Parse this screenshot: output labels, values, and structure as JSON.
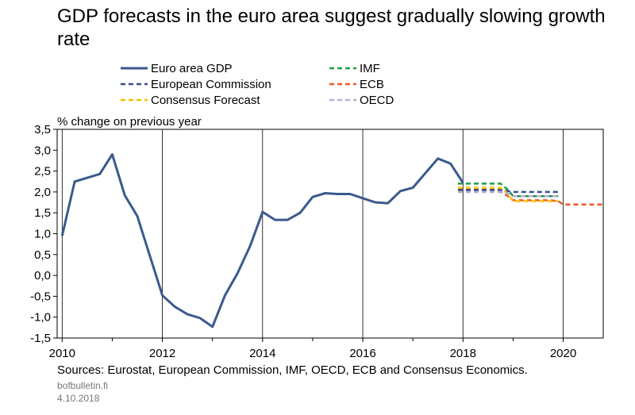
{
  "title": "GDP forecasts in the euro area suggest gradually slowing growth rate",
  "sources": "Sources: Eurostat, European Commission, IMF, OECD, ECB and Consensus Economics.",
  "site": "bofbulletin.fi",
  "date": "4.10.2018",
  "chart_data": {
    "type": "line",
    "ylabel": "% change on previous year",
    "xlim": [
      2009.9,
      2020.8
    ],
    "ylim": [
      -1.5,
      3.5
    ],
    "y_ticks": [
      -1.5,
      -1.0,
      -0.5,
      0.0,
      0.5,
      1.0,
      1.5,
      2.0,
      2.5,
      3.0,
      3.5
    ],
    "y_tick_labels": [
      "-1,5",
      "-1,0",
      "-0,5",
      "0,0",
      "0,5",
      "1,0",
      "1,5",
      "2,0",
      "2,5",
      "3,0",
      "3,5"
    ],
    "x_ticks": [
      2010,
      2012,
      2014,
      2016,
      2018,
      2020
    ],
    "x_tick_labels": [
      "2010",
      "2012",
      "2014",
      "2016",
      "2018",
      "2020"
    ],
    "grid": "vertical",
    "legend_position": "top",
    "series": [
      {
        "name": "Euro area GDP",
        "color": "#3a5a8c",
        "style": "solid",
        "x": [
          2010.0,
          2010.25,
          2010.75,
          2011.0,
          2011.25,
          2011.5,
          2011.75,
          2012.0,
          2012.25,
          2012.5,
          2012.75,
          2013.0,
          2013.25,
          2013.5,
          2013.75,
          2014.0,
          2014.25,
          2014.5,
          2014.75,
          2015.0,
          2015.25,
          2015.5,
          2015.75,
          2016.0,
          2016.25,
          2016.5,
          2016.75,
          2017.0,
          2017.25,
          2017.5,
          2017.75,
          2018.0
        ],
        "y": [
          0.95,
          2.25,
          2.43,
          2.9,
          1.92,
          1.42,
          0.47,
          -0.48,
          -0.75,
          -0.93,
          -1.02,
          -1.23,
          -0.48,
          0.05,
          0.7,
          1.52,
          1.33,
          1.33,
          1.5,
          1.88,
          1.97,
          1.95,
          1.95,
          1.85,
          1.75,
          1.73,
          2.02,
          2.1,
          2.45,
          2.8,
          2.68,
          2.22
        ]
      },
      {
        "name": "IMF",
        "color": "#1a9e47",
        "style": "dashed",
        "x": [
          2017.9,
          2018.0,
          2018.25,
          2018.5,
          2018.75,
          2018.9,
          2019.0,
          2019.25,
          2019.5,
          2019.75,
          2019.9
        ],
        "y": [
          2.2,
          2.2,
          2.2,
          2.2,
          2.2,
          2.05,
          1.9,
          1.9,
          1.9,
          1.9,
          1.9
        ]
      },
      {
        "name": "European Commission",
        "color": "#3a4c8e",
        "style": "dashed",
        "x": [
          2017.9,
          2018.0,
          2018.25,
          2018.5,
          2018.75,
          2018.9,
          2019.0,
          2019.25,
          2019.5,
          2019.75,
          2019.9
        ],
        "y": [
          2.05,
          2.05,
          2.05,
          2.05,
          2.05,
          2.02,
          2.0,
          2.0,
          2.0,
          2.0,
          2.0
        ]
      },
      {
        "name": "ECB",
        "color": "#f05a28",
        "style": "dashed",
        "x": [
          2017.9,
          2018.0,
          2018.25,
          2018.5,
          2018.75,
          2018.9,
          2019.0,
          2019.25,
          2019.5,
          2019.75,
          2019.9,
          2020.0,
          2020.25,
          2020.5,
          2020.8
        ],
        "y": [
          2.0,
          2.0,
          2.0,
          2.0,
          2.0,
          1.9,
          1.8,
          1.8,
          1.8,
          1.8,
          1.78,
          1.7,
          1.7,
          1.7,
          1.7
        ]
      },
      {
        "name": "Consensus Forecast",
        "color": "#f8c300",
        "style": "dashed",
        "x": [
          2017.9,
          2018.0,
          2018.25,
          2018.5,
          2018.75,
          2018.9,
          2019.0,
          2019.25,
          2019.5,
          2019.75,
          2019.9
        ],
        "y": [
          2.1,
          2.1,
          2.1,
          2.1,
          2.1,
          1.95,
          1.78,
          1.78,
          1.78,
          1.78,
          1.78
        ]
      },
      {
        "name": "OECD",
        "color": "#b7aed0",
        "style": "dashed",
        "x": [
          2017.9,
          2018.0,
          2018.25,
          2018.5,
          2018.75,
          2018.9,
          2019.0,
          2019.25,
          2019.5,
          2019.75,
          2019.9
        ],
        "y": [
          2.0,
          2.0,
          2.0,
          2.0,
          2.0,
          1.97,
          1.9,
          1.9,
          1.9,
          1.9,
          1.9
        ]
      }
    ]
  }
}
